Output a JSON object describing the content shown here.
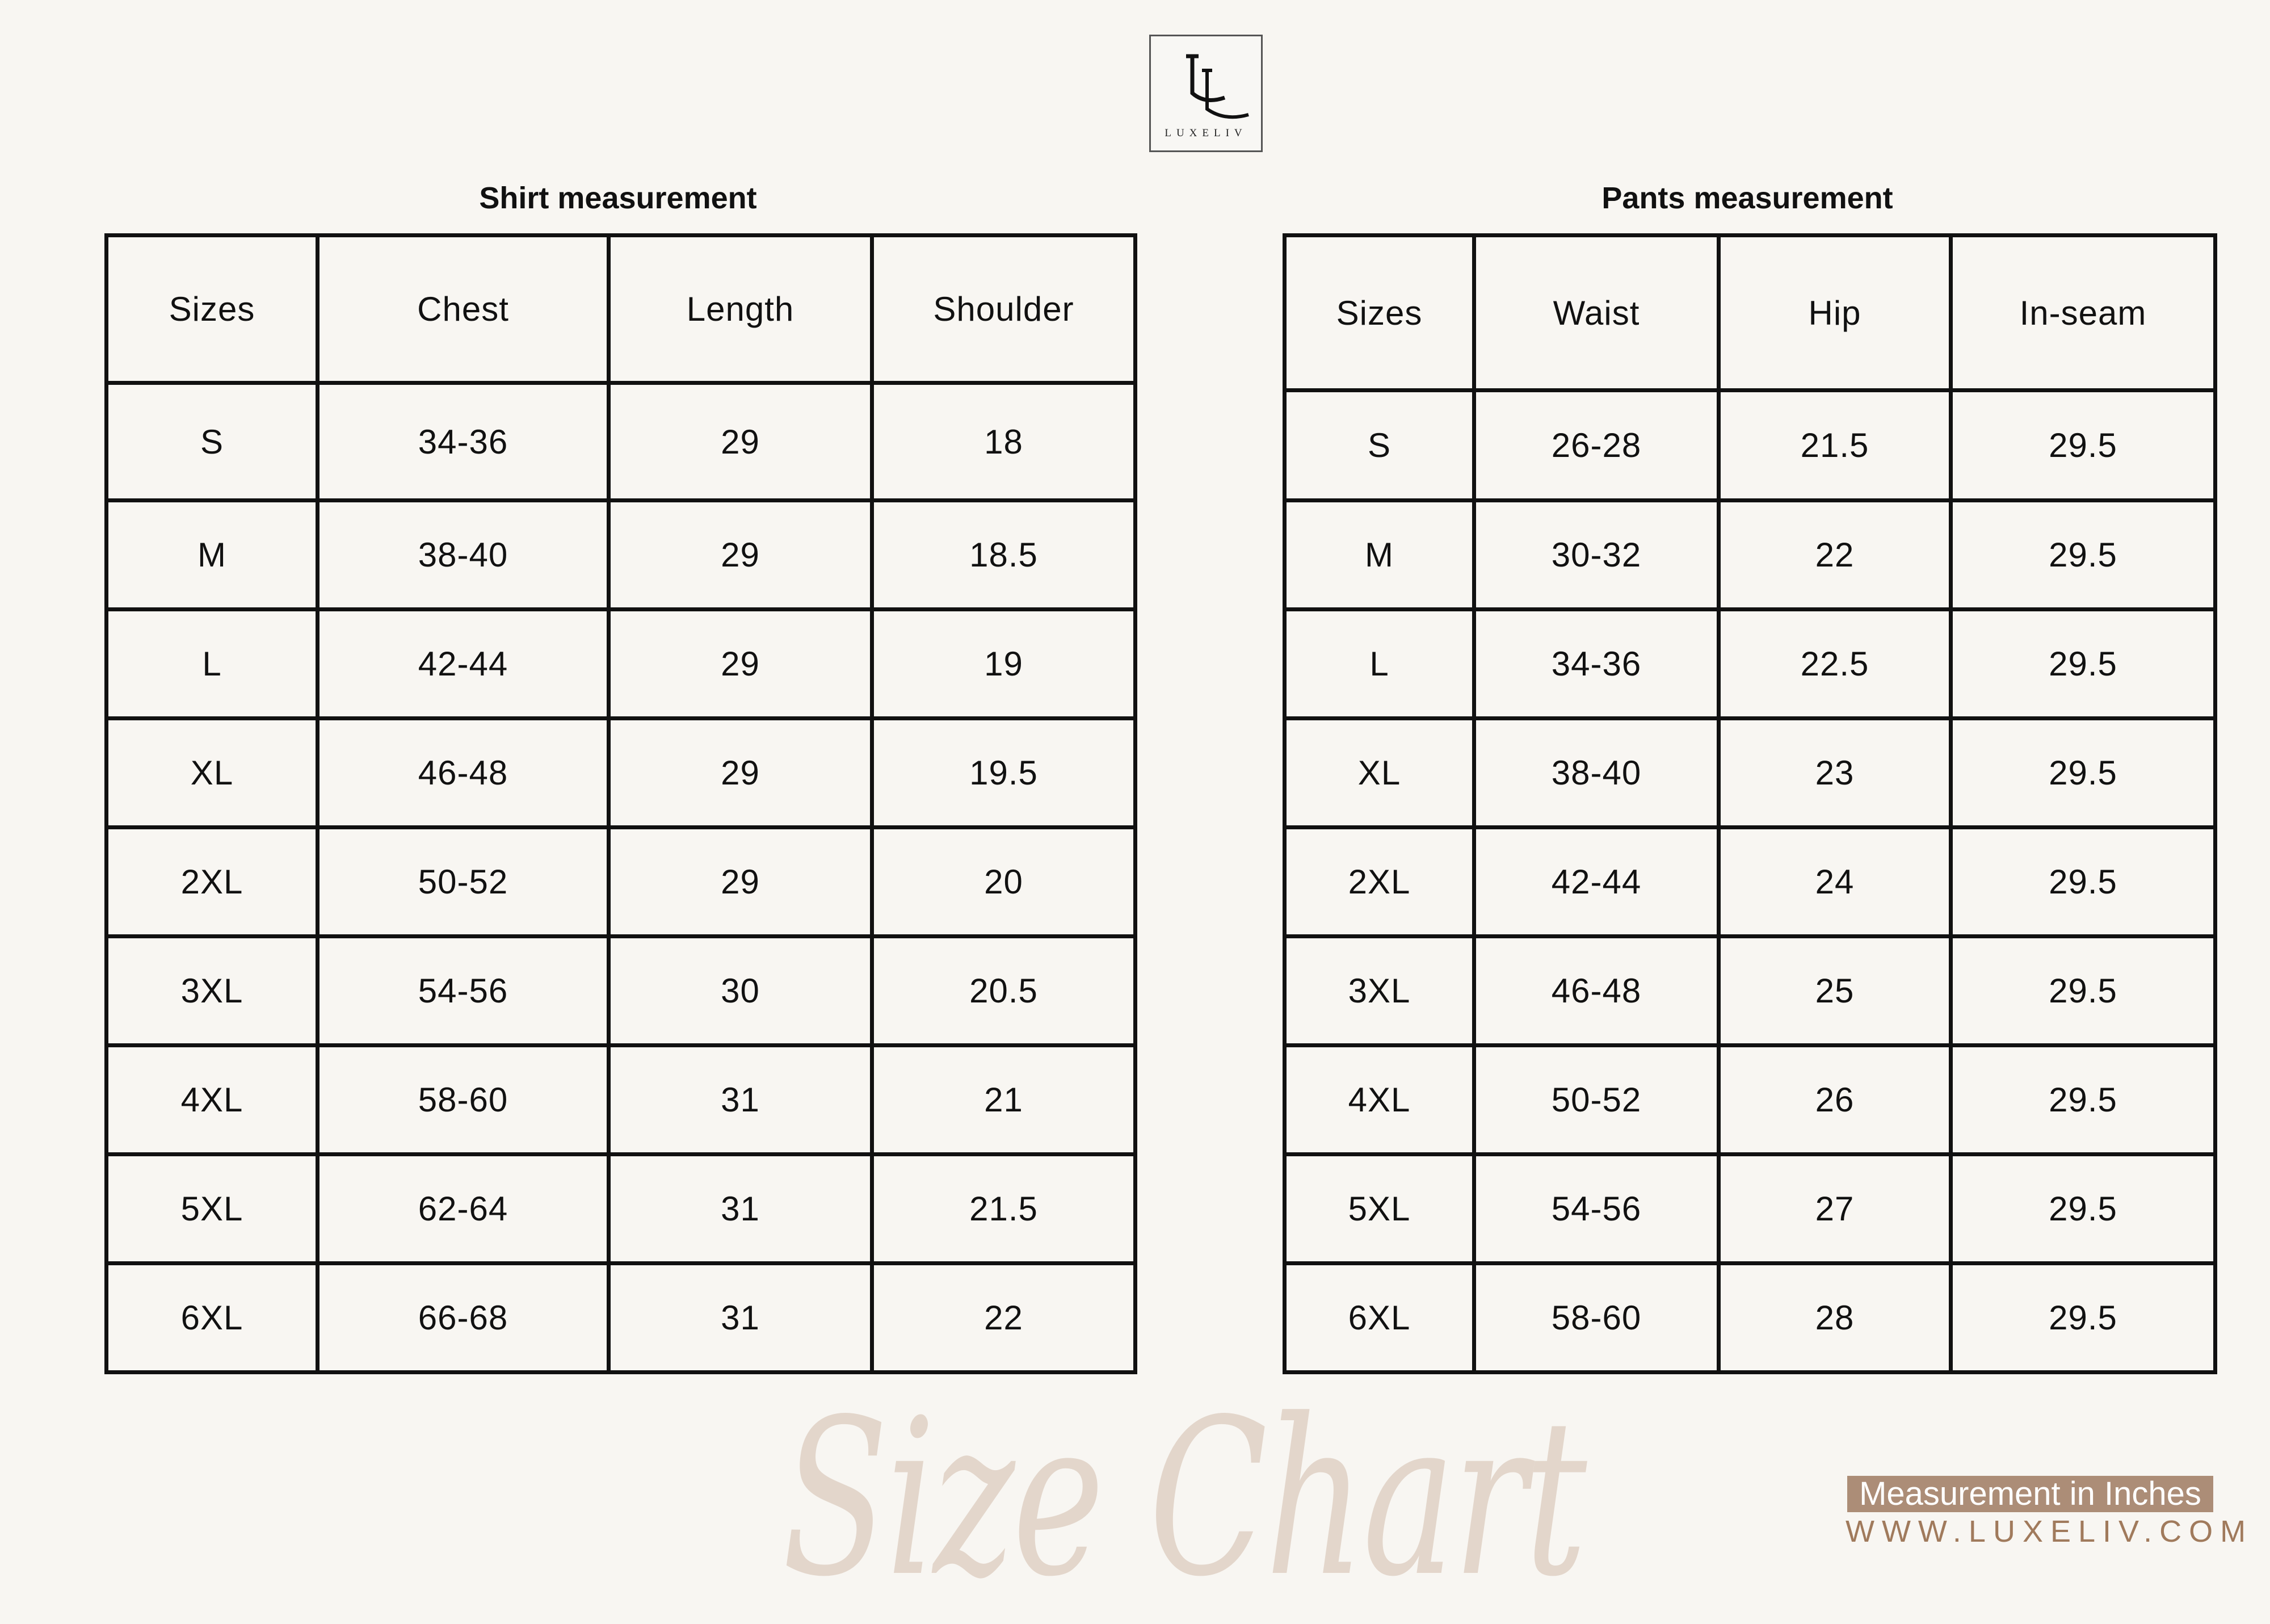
{
  "logo": {
    "text": "LUXELIV",
    "monogram": "LL"
  },
  "shirt": {
    "title": "Shirt measurement",
    "headers": [
      "Sizes",
      "Chest",
      "Length",
      "Shoulder"
    ],
    "rows": [
      [
        "S",
        "34-36",
        "29",
        "18"
      ],
      [
        "M",
        "38-40",
        "29",
        "18.5"
      ],
      [
        "L",
        "42-44",
        "29",
        "19"
      ],
      [
        "XL",
        "46-48",
        "29",
        "19.5"
      ],
      [
        "2XL",
        "50-52",
        "29",
        "20"
      ],
      [
        "3XL",
        "54-56",
        "30",
        "20.5"
      ],
      [
        "4XL",
        "58-60",
        "31",
        "21"
      ],
      [
        "5XL",
        "62-64",
        "31",
        "21.5"
      ],
      [
        "6XL",
        "66-68",
        "31",
        "22"
      ]
    ]
  },
  "pants": {
    "title": "Pants measurement",
    "headers": [
      "Sizes",
      "Waist",
      "Hip",
      "In-seam"
    ],
    "rows": [
      [
        "S",
        "26-28",
        "21.5",
        "29.5"
      ],
      [
        "M",
        "30-32",
        "22",
        "29.5"
      ],
      [
        "L",
        "34-36",
        "22.5",
        "29.5"
      ],
      [
        "XL",
        "38-40",
        "23",
        "29.5"
      ],
      [
        "2XL",
        "42-44",
        "24",
        "29.5"
      ],
      [
        "3XL",
        "46-48",
        "25",
        "29.5"
      ],
      [
        "4XL",
        "50-52",
        "26",
        "29.5"
      ],
      [
        "5XL",
        "54-56",
        "27",
        "29.5"
      ],
      [
        "6XL",
        "58-60",
        "28",
        "29.5"
      ]
    ]
  },
  "footer": {
    "script_title": "Size Chart",
    "unit_note": "Measurement in Inches",
    "website": "WWW.LUXELIV.COM"
  },
  "colors": {
    "background": "#f8f6f2",
    "accent": "#ac8d77",
    "website": "#a07a5c",
    "script": "#e3d6cb"
  }
}
